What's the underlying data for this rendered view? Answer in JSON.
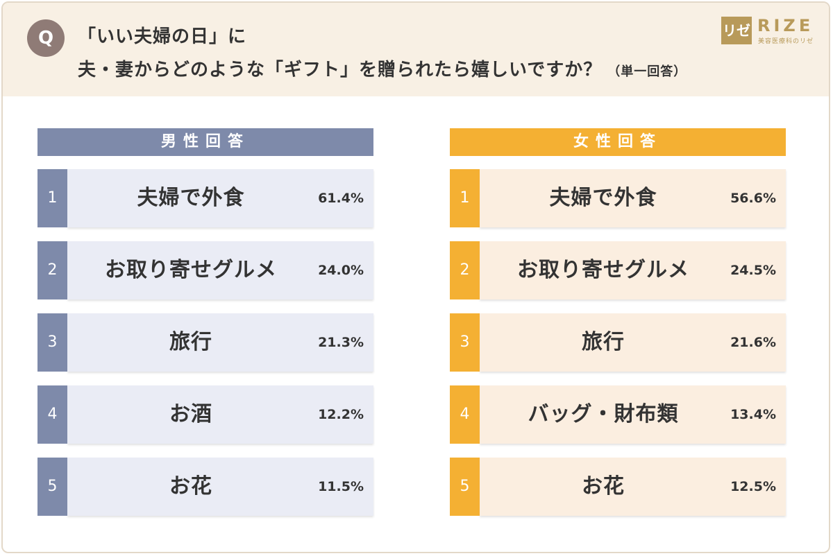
{
  "header": {
    "q_label": "Q",
    "line1": "「いい夫婦の日」に",
    "line2": "夫・妻からどのような「ギフト」を贈られたら嬉しいですか？",
    "note": "（単一回答）",
    "logo_mark": "リゼ",
    "logo_text": "RIZE",
    "logo_sub": "美容医療科のリゼ"
  },
  "colors": {
    "male_accent": "#7e8aaa",
    "male_cell": "#eaecf5",
    "female_accent": "#f4b033",
    "female_cell": "#fbeee0",
    "header_bg": "#f8f0e4"
  },
  "chart_data": [
    {
      "type": "table",
      "title": "男性回答",
      "columns": [
        "rank",
        "item",
        "percent"
      ],
      "rows": [
        {
          "rank": "1",
          "item": "夫婦で外食",
          "percent": "61.4%"
        },
        {
          "rank": "2",
          "item": "お取り寄せグルメ",
          "percent": "24.0%"
        },
        {
          "rank": "3",
          "item": "旅行",
          "percent": "21.3%"
        },
        {
          "rank": "4",
          "item": "お酒",
          "percent": "12.2%"
        },
        {
          "rank": "5",
          "item": "お花",
          "percent": "11.5%"
        }
      ]
    },
    {
      "type": "table",
      "title": "女性回答",
      "columns": [
        "rank",
        "item",
        "percent"
      ],
      "rows": [
        {
          "rank": "1",
          "item": "夫婦で外食",
          "percent": "56.6%"
        },
        {
          "rank": "2",
          "item": "お取り寄せグルメ",
          "percent": "24.5%"
        },
        {
          "rank": "3",
          "item": "旅行",
          "percent": "21.6%"
        },
        {
          "rank": "4",
          "item": "バッグ・財布類",
          "percent": "13.4%"
        },
        {
          "rank": "5",
          "item": "お花",
          "percent": "12.5%"
        }
      ]
    }
  ]
}
